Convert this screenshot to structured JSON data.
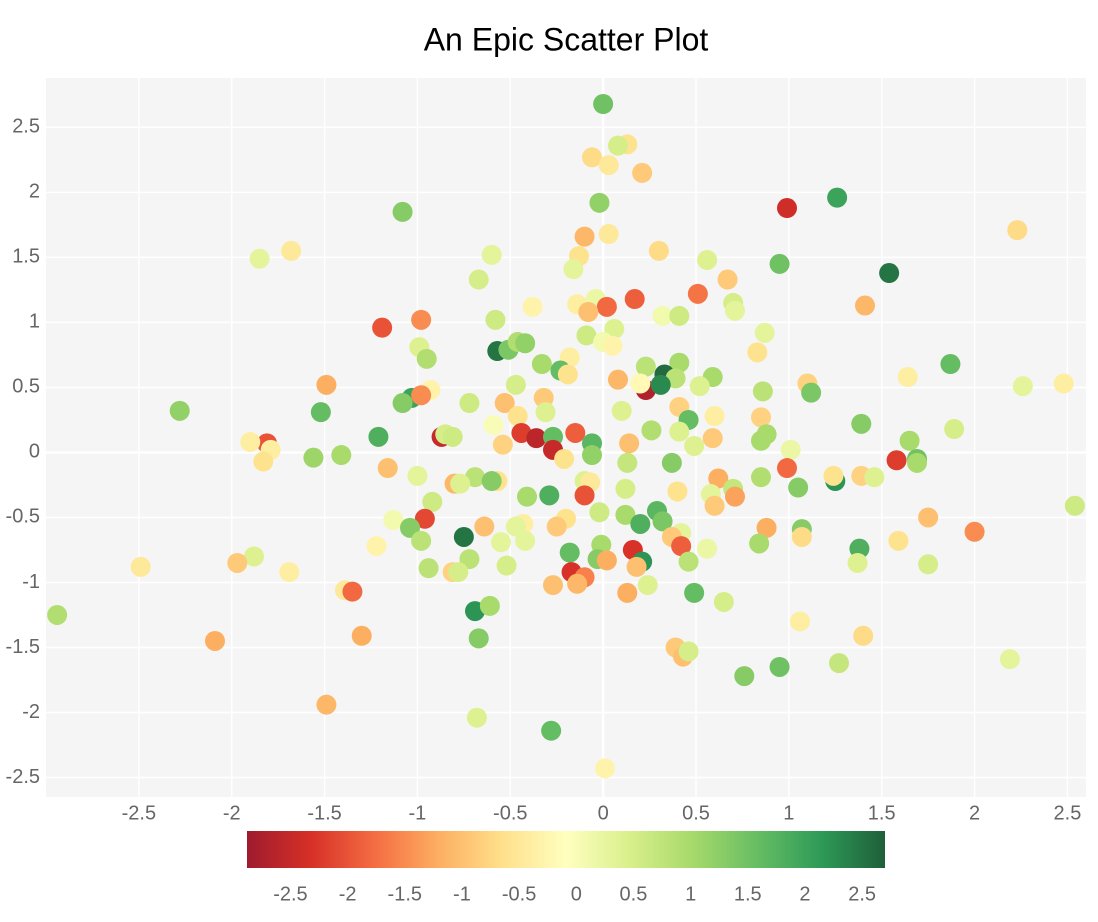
{
  "chart_data": {
    "type": "scatter",
    "title": "An Epic Scatter Plot",
    "xlim": [
      -3.0,
      2.6
    ],
    "ylim": [
      -2.65,
      2.88
    ],
    "xticks": [
      -2.5,
      -2,
      -1.5,
      -1,
      -0.5,
      0,
      0.5,
      1,
      1.5,
      2,
      2.5
    ],
    "yticks": [
      -2.5,
      -2,
      -1.5,
      -1,
      -0.5,
      0,
      0.5,
      1,
      1.5,
      2,
      2.5
    ],
    "grid": true,
    "clim": [
      -2.88,
      2.7
    ],
    "cticks": [
      -2.5,
      -2,
      -1.5,
      -1,
      -0.5,
      0,
      0.5,
      1,
      1.5,
      2,
      2.5
    ],
    "colorscale": [
      "#9e1b2e",
      "#d73027",
      "#f46d43",
      "#fdae61",
      "#fee08b",
      "#ffffbf",
      "#d9ef8b",
      "#a6d96a",
      "#66bd63",
      "#2e9a57",
      "#1f5f3a"
    ],
    "x": [
      0,
      0.13,
      0.08,
      -0.06,
      0.03,
      0.21,
      1.26,
      0.99,
      -0.02,
      -1.08,
      2.23,
      -0.1,
      0.03,
      -1.68,
      -1.85,
      -0.6,
      -0.13,
      0.3,
      0.56,
      0.95,
      -0.16,
      1.54,
      -0.67,
      0.67,
      0.51,
      0.17,
      -0.38,
      -0.14,
      -0.04,
      0.02,
      -0.08,
      0.7,
      0.71,
      1.41,
      -0.58,
      0.32,
      0.41,
      -0.98,
      -1.19,
      0.06,
      -0.09,
      0.87,
      -0.57,
      -0.51,
      -0.46,
      -0.42,
      -0.99,
      0,
      0.05,
      0.83,
      -0.95,
      -0.18,
      0.41,
      -0.33,
      0.23,
      1.87,
      -0.23,
      -0.19,
      0.33,
      0.59,
      0.08,
      1.64,
      0.39,
      1.1,
      2.48,
      2.26,
      -1.49,
      -0.47,
      0.23,
      0.31,
      0.52,
      0.2,
      -0.93,
      1.12,
      0.86,
      -1.03,
      -0.98,
      -1.08,
      -0.72,
      -0.53,
      -0.32,
      -2.28,
      -1.52,
      0.1,
      0.41,
      0.6,
      0.85,
      -0.31,
      -0.46,
      0.46,
      -0.59,
      1.39,
      1.89,
      0.26,
      0.41,
      -0.44,
      -0.36,
      -0.15,
      -0.27,
      -0.87,
      -0.85,
      -0.81,
      -1.21,
      -1.81,
      -1.9,
      -1.79,
      -1.83,
      0.59,
      0.85,
      0.88,
      1.65,
      0.14,
      -0.06,
      -0.27,
      -0.54,
      0.49,
      1.01,
      -0.06,
      -0.21,
      -1.56,
      -1.41,
      1.58,
      1.69,
      1.69,
      0.37,
      0.13,
      0.99,
      -1.16,
      -1.0,
      0.62,
      -0.69,
      -0.57,
      -0.6,
      -0.1,
      -0.07,
      1.39,
      1.46,
      1.25,
      1.24,
      1.05,
      0.85,
      -0.8,
      -0.77,
      0.12,
      0.4,
      0.7,
      0.71,
      0.58,
      -0.29,
      -0.41,
      -0.1,
      0.6,
      -0.92,
      2.54,
      0.29,
      -0.02,
      0.12,
      0.32,
      -1.13,
      -0.96,
      1.75,
      -0.2,
      0.2,
      -1.04,
      -0.64,
      -0.25,
      -0.43,
      -0.47,
      0.88,
      1.07,
      2.0,
      0.42,
      -0.75,
      0.37,
      1.07,
      -0.98,
      -0.55,
      -0.42,
      0.42,
      0.84,
      1.59,
      0.56,
      -0.01,
      -1.22,
      1.38,
      0.16,
      -0.18,
      -1.88,
      -1.97,
      -0.72,
      -0.03,
      0.02,
      0.46,
      0.21,
      1.37,
      -0.52,
      1.75,
      -2.49,
      -0.94,
      -0.81,
      -0.78,
      -0.17,
      -1.69,
      0.18,
      -0.1,
      -0.14,
      -0.27,
      0.24,
      -1.39,
      -1.35,
      0.13,
      0.49,
      0.65,
      -0.69,
      -0.61,
      -2.94,
      1.06,
      -1.3,
      1.4,
      -2.09,
      -0.67,
      0.39,
      0.43,
      0.46,
      2.19,
      1.27,
      0.95,
      0.76,
      -1.49,
      -0.68,
      -0.28,
      0.01
    ],
    "y": [
      2.68,
      2.37,
      2.36,
      2.27,
      2.21,
      2.15,
      1.96,
      1.88,
      1.92,
      1.85,
      1.71,
      1.66,
      1.68,
      1.55,
      1.49,
      1.52,
      1.51,
      1.55,
      1.48,
      1.45,
      1.41,
      1.38,
      1.33,
      1.33,
      1.22,
      1.18,
      1.12,
      1.14,
      1.18,
      1.12,
      1.08,
      1.15,
      1.09,
      1.13,
      1.02,
      1.05,
      1.05,
      1.02,
      0.96,
      0.95,
      0.9,
      0.92,
      0.78,
      0.79,
      0.85,
      0.84,
      0.81,
      0.85,
      0.82,
      0.77,
      0.72,
      0.73,
      0.69,
      0.68,
      0.66,
      0.68,
      0.63,
      0.6,
      0.6,
      0.58,
      0.56,
      0.58,
      0.57,
      0.53,
      0.53,
      0.51,
      0.52,
      0.52,
      0.48,
      0.52,
      0.51,
      0.53,
      0.48,
      0.46,
      0.47,
      0.42,
      0.44,
      0.38,
      0.38,
      0.38,
      0.42,
      0.32,
      0.31,
      0.32,
      0.35,
      0.28,
      0.27,
      0.31,
      0.28,
      0.25,
      0.21,
      0.22,
      0.18,
      0.17,
      0.16,
      0.15,
      0.11,
      0.15,
      0.12,
      0.12,
      0.14,
      0.12,
      0.12,
      0.07,
      0.08,
      0.02,
      -0.07,
      0.11,
      0.09,
      0.14,
      0.09,
      0.07,
      0.07,
      0.02,
      0.06,
      0.05,
      0.02,
      -0.02,
      -0.05,
      -0.04,
      -0.02,
      -0.06,
      -0.05,
      -0.08,
      -0.08,
      -0.08,
      -0.12,
      -0.12,
      -0.18,
      -0.2,
      -0.19,
      -0.22,
      -0.22,
      -0.22,
      -0.23,
      -0.18,
      -0.19,
      -0.22,
      -0.18,
      -0.27,
      -0.19,
      -0.24,
      -0.24,
      -0.28,
      -0.3,
      -0.28,
      -0.34,
      -0.32,
      -0.33,
      -0.34,
      -0.33,
      -0.41,
      -0.38,
      -0.41,
      -0.45,
      -0.46,
      -0.48,
      -0.53,
      -0.52,
      -0.51,
      -0.5,
      -0.51,
      -0.55,
      -0.58,
      -0.57,
      -0.57,
      -0.55,
      -0.57,
      -0.58,
      -0.59,
      -0.61,
      -0.62,
      -0.65,
      -0.65,
      -0.65,
      -0.68,
      -0.69,
      -0.68,
      -0.72,
      -0.7,
      -0.68,
      -0.74,
      -0.71,
      -0.72,
      -0.74,
      -0.75,
      -0.77,
      -0.8,
      -0.85,
      -0.82,
      -0.82,
      -0.83,
      -0.84,
      -0.84,
      -0.85,
      -0.87,
      -0.86,
      -0.88,
      -0.89,
      -0.92,
      -0.92,
      -0.92,
      -0.92,
      -0.88,
      -0.96,
      -1.01,
      -1.02,
      -1.02,
      -1.06,
      -1.07,
      -1.08,
      -1.08,
      -1.15,
      -1.22,
      -1.18,
      -1.25,
      -1.3,
      -1.41,
      -1.41,
      -1.45,
      -1.43,
      -1.5,
      -1.57,
      -1.53,
      -1.59,
      -1.62,
      -1.65,
      -1.72,
      -1.94,
      -2.04,
      -2.14,
      -2.43
    ],
    "color_values": [
      1.5,
      -0.6,
      0.5,
      -0.7,
      -0.5,
      -0.9,
      2.0,
      -2.4,
      1.2,
      1.3,
      -0.7,
      -1.1,
      -0.5,
      -0.5,
      0.3,
      0.3,
      -0.6,
      -0.7,
      0.4,
      1.5,
      0.3,
      2.5,
      0.5,
      -0.9,
      -1.7,
      -1.9,
      -0.3,
      -0.4,
      0.2,
      -1.8,
      -1.0,
      0.5,
      0.3,
      -1.1,
      0.6,
      0.1,
      0.6,
      -1.5,
      -2.0,
      0.4,
      0.6,
      0.3,
      2.5,
      1.4,
      0.9,
      1.2,
      0.4,
      0.1,
      -0.3,
      -0.6,
      0.9,
      -0.4,
      1.0,
      1.0,
      0.8,
      1.6,
      1.6,
      -0.6,
      2.6,
      1.0,
      -1.1,
      -0.4,
      0.8,
      -0.8,
      -0.4,
      0.3,
      -1.2,
      0.5,
      -2.7,
      2.3,
      0.4,
      -0.2,
      -0.3,
      1.4,
      0.8,
      2.0,
      -1.5,
      1.3,
      0.6,
      -1.0,
      -0.9,
      1.2,
      1.6,
      0.4,
      -0.8,
      -0.4,
      -0.8,
      0.4,
      -0.6,
      1.6,
      0.0,
      1.3,
      0.5,
      0.9,
      0.4,
      -2.2,
      -2.6,
      -1.9,
      1.6,
      -2.5,
      0.5,
      0.6,
      1.8,
      -2.0,
      -0.4,
      -0.4,
      -0.6,
      -0.9,
      1.0,
      1.0,
      1.0,
      -1.0,
      1.7,
      -2.5,
      -0.8,
      0.4,
      0.2,
      1.2,
      -0.6,
      1.1,
      1.0,
      -2.2,
      1.5,
      1.0,
      1.3,
      0.7,
      -1.8,
      -1.0,
      0.3,
      -1.2,
      0.8,
      -0.6,
      1.3,
      0.4,
      -0.5,
      -0.8,
      0.4,
      2.2,
      -0.6,
      1.3,
      0.9,
      -1.1,
      0.4,
      0.5,
      -0.6,
      0.7,
      -1.3,
      0.3,
      1.8,
      1.0,
      -2.0,
      -0.9,
      0.6,
      0.6,
      1.7,
      0.6,
      1.0,
      1.4,
      0.1,
      -2.1,
      -1.0,
      -0.6,
      1.8,
      1.3,
      -1.0,
      -0.9,
      -0.4,
      0.3,
      -1.2,
      1.3,
      -1.5,
      0.3,
      2.5,
      -0.9,
      -0.7,
      0.8,
      0.3,
      0.3,
      -1.9,
      1.0,
      -0.6,
      0.2,
      1.0,
      -0.3,
      1.8,
      -2.3,
      1.6,
      0.4,
      -0.9,
      0.8,
      1.3,
      -1.2,
      0.8,
      2.2,
      0.4,
      0.5,
      0.5,
      -0.5,
      0.8,
      -0.8,
      0.5,
      -2.3,
      -0.4,
      -1.0,
      -1.6,
      -1.1,
      -1.0,
      0.4,
      -0.5,
      -1.8,
      -1.2,
      1.6,
      0.5,
      2.2,
      1.0,
      0.9,
      -0.4,
      -1.2,
      -0.7,
      -1.2,
      1.3,
      -0.9,
      -1.0,
      0.5,
      0.3,
      0.7,
      1.5,
      1.3,
      -1.1,
      0.4,
      1.6,
      -0.3
    ]
  }
}
